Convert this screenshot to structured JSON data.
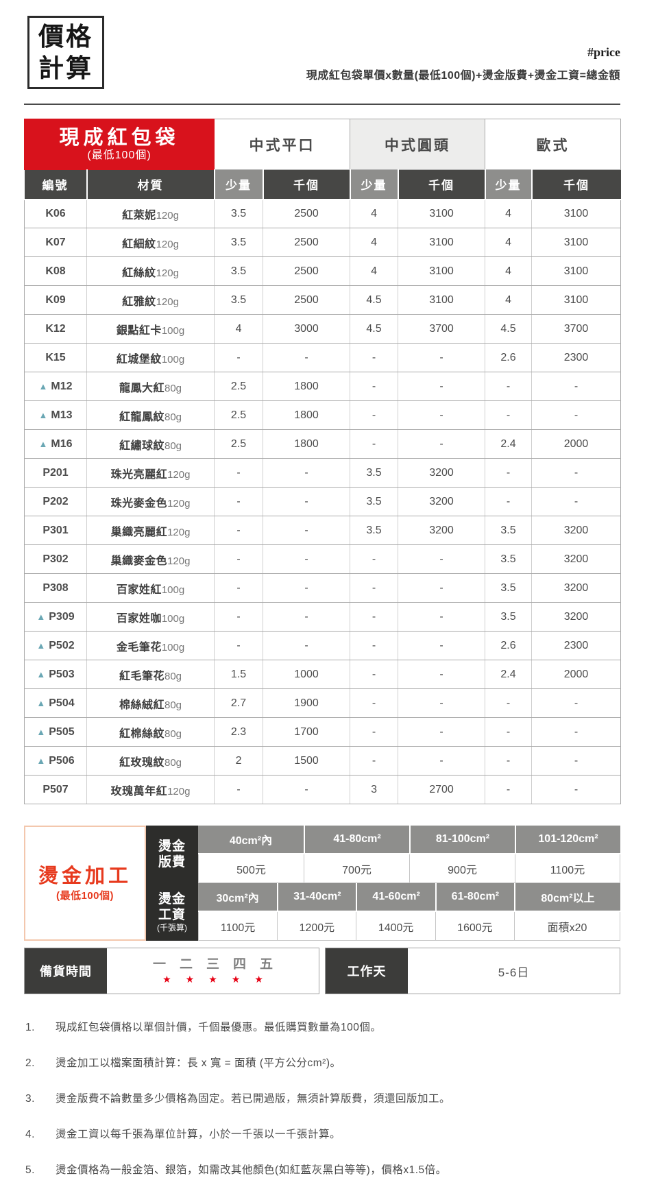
{
  "header": {
    "logo_line1": "價格",
    "logo_line2": "計算",
    "hashtag": "#price",
    "formula": "現成紅包袋單價x數量(最低100個)+燙金版費+燙金工資=總金額"
  },
  "table": {
    "title": "現成紅包袋",
    "subtitle": "(最低100個)",
    "marker": "▲",
    "categories": [
      "中式平口",
      "中式圓頭",
      "歐式"
    ],
    "columns": {
      "code": "編號",
      "material": "材質",
      "small_qty": "少量",
      "per_thousand": "千個"
    },
    "rows": [
      {
        "code": "K06",
        "marked": false,
        "material": "紅萊妮",
        "weight": "120g",
        "values": [
          "3.5",
          "2500",
          "4",
          "3100",
          "4",
          "3100"
        ]
      },
      {
        "code": "K07",
        "marked": false,
        "material": "紅細紋",
        "weight": "120g",
        "values": [
          "3.5",
          "2500",
          "4",
          "3100",
          "4",
          "3100"
        ]
      },
      {
        "code": "K08",
        "marked": false,
        "material": "紅絲紋",
        "weight": "120g",
        "values": [
          "3.5",
          "2500",
          "4",
          "3100",
          "4",
          "3100"
        ]
      },
      {
        "code": "K09",
        "marked": false,
        "material": "紅雅紋",
        "weight": "120g",
        "values": [
          "3.5",
          "2500",
          "4.5",
          "3100",
          "4",
          "3100"
        ]
      },
      {
        "code": "K12",
        "marked": false,
        "material": "銀點紅卡",
        "weight": "100g",
        "values": [
          "4",
          "3000",
          "4.5",
          "3700",
          "4.5",
          "3700"
        ]
      },
      {
        "code": "K15",
        "marked": false,
        "material": "紅城堡紋",
        "weight": "100g",
        "values": [
          "-",
          "-",
          "-",
          "-",
          "2.6",
          "2300"
        ]
      },
      {
        "code": "M12",
        "marked": true,
        "material": "龍鳳大紅",
        "weight": "80g",
        "values": [
          "2.5",
          "1800",
          "-",
          "-",
          "-",
          "-"
        ]
      },
      {
        "code": "M13",
        "marked": true,
        "material": "紅龍鳳紋",
        "weight": "80g",
        "values": [
          "2.5",
          "1800",
          "-",
          "-",
          "-",
          "-"
        ]
      },
      {
        "code": "M16",
        "marked": true,
        "material": "紅繡球紋",
        "weight": "80g",
        "values": [
          "2.5",
          "1800",
          "-",
          "-",
          "2.4",
          "2000"
        ]
      },
      {
        "code": "P201",
        "marked": false,
        "material": "珠光亮麗紅",
        "weight": "120g",
        "values": [
          "-",
          "-",
          "3.5",
          "3200",
          "-",
          "-"
        ]
      },
      {
        "code": "P202",
        "marked": false,
        "material": "珠光麥金色",
        "weight": "120g",
        "values": [
          "-",
          "-",
          "3.5",
          "3200",
          "-",
          "-"
        ]
      },
      {
        "code": "P301",
        "marked": false,
        "material": "巢織亮麗紅",
        "weight": "120g",
        "values": [
          "-",
          "-",
          "3.5",
          "3200",
          "3.5",
          "3200"
        ]
      },
      {
        "code": "P302",
        "marked": false,
        "material": "巢織麥金色",
        "weight": "120g",
        "values": [
          "-",
          "-",
          "-",
          "-",
          "3.5",
          "3200"
        ]
      },
      {
        "code": "P308",
        "marked": false,
        "material": "百家姓紅",
        "weight": "100g",
        "values": [
          "-",
          "-",
          "-",
          "-",
          "3.5",
          "3200"
        ]
      },
      {
        "code": "P309",
        "marked": true,
        "material": "百家姓咖",
        "weight": "100g",
        "values": [
          "-",
          "-",
          "-",
          "-",
          "3.5",
          "3200"
        ]
      },
      {
        "code": "P502",
        "marked": true,
        "material": "金毛筆花",
        "weight": "100g",
        "values": [
          "-",
          "-",
          "-",
          "-",
          "2.6",
          "2300"
        ]
      },
      {
        "code": "P503",
        "marked": true,
        "material": "紅毛筆花",
        "weight": "80g",
        "values": [
          "1.5",
          "1000",
          "-",
          "-",
          "2.4",
          "2000"
        ]
      },
      {
        "code": "P504",
        "marked": true,
        "material": "棉絲絨紅",
        "weight": "80g",
        "values": [
          "2.7",
          "1900",
          "-",
          "-",
          "-",
          "-"
        ]
      },
      {
        "code": "P505",
        "marked": true,
        "material": "紅棉絲紋",
        "weight": "80g",
        "values": [
          "2.3",
          "1700",
          "-",
          "-",
          "-",
          "-"
        ]
      },
      {
        "code": "P506",
        "marked": true,
        "material": "紅玫瑰紋",
        "weight": "80g",
        "values": [
          "2",
          "1500",
          "-",
          "-",
          "-",
          "-"
        ]
      },
      {
        "code": "P507",
        "marked": false,
        "material": "玫瑰萬年紅",
        "weight": "120g",
        "values": [
          "-",
          "-",
          "3",
          "2700",
          "-",
          "-"
        ]
      }
    ]
  },
  "foil": {
    "title": "燙金加工",
    "subtitle": "(最低100個)",
    "plate": {
      "label_line1": "燙金",
      "label_line2": "版費",
      "headers": [
        "40cm²內",
        "41-80cm²",
        "81-100cm²",
        "101-120cm²"
      ],
      "prices": [
        "500元",
        "700元",
        "900元",
        "1100元"
      ]
    },
    "wage": {
      "label_line1": "燙金",
      "label_line2": "工資",
      "label_line3": "(千張算)",
      "headers": [
        "30cm²內",
        "31-40cm²",
        "41-60cm²",
        "61-80cm²",
        "80cm²以上"
      ],
      "prices": [
        "1100元",
        "1200元",
        "1400元",
        "1600元",
        "面積x20"
      ]
    }
  },
  "schedule": {
    "prep_label": "備貨時間",
    "weekdays": [
      "一",
      "二",
      "三",
      "四",
      "五"
    ],
    "star": "★",
    "work_label": "工作天",
    "work_value": "5-6日"
  },
  "notes": [
    {
      "num": "1.",
      "text": "現成紅包袋價格以單個計價，千個最優惠。最低購買數量為100個。"
    },
    {
      "num": "2.",
      "text": "燙金加工以檔案面積計算：長 x 寬 = 面積 (平方公分cm²)。"
    },
    {
      "num": "3.",
      "text": "燙金版費不論數量多少價格為固定。若已開過版，無須計算版費，須還回版加工。"
    },
    {
      "num": "4.",
      "text": "燙金工資以每千張為單位計算，小於一千張以一千張計算。"
    },
    {
      "num": "5.",
      "text": "燙金價格為一般金箔、銀箔，如需改其他顏色(如紅藍灰黑白等等)，價格x1.5倍。"
    }
  ],
  "colors": {
    "header_red": "#d8121c",
    "foil_red": "#e73a1e",
    "dark_header": "#474745",
    "mid_gray": "#8e8e8c",
    "light_gray_bg": "#ededec",
    "black_label": "#2d2d2b",
    "schedule_dark": "#3c3c3a",
    "marker_teal": "#6aa7b4",
    "star_red": "#e60013"
  }
}
